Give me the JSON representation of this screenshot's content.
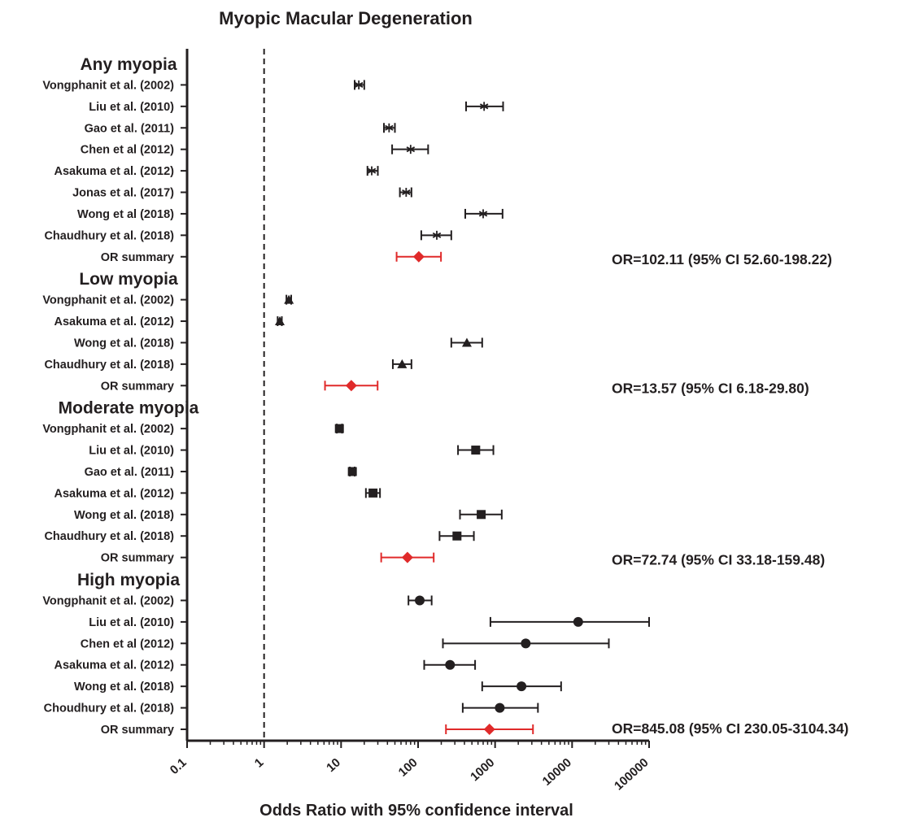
{
  "chart_data": {
    "type": "forest",
    "title": "Myopic Macular Degeneration",
    "xlabel": "Odds Ratio with 95% confidence interval",
    "x_scale": "log",
    "xlim": [
      0.1,
      100000
    ],
    "x_ticks": [
      "0.1",
      "1",
      "10",
      "100",
      "1000",
      "10000",
      "100000"
    ],
    "reference_line": 1,
    "colors": {
      "study": "#231f20",
      "summary": "#e02a2a"
    },
    "groups": [
      {
        "name": "Any myopia",
        "marker": "asterisk",
        "studies": [
          {
            "label": "Vongphanit et al. (2002)",
            "or": 17,
            "lo": 15,
            "hi": 20
          },
          {
            "label": "Liu et al. (2010)",
            "or": 720,
            "lo": 420,
            "hi": 1270
          },
          {
            "label": "Gao et al. (2011)",
            "or": 42,
            "lo": 36,
            "hi": 50
          },
          {
            "label": "Chen et al (2012)",
            "or": 80,
            "lo": 46,
            "hi": 135
          },
          {
            "label": "Asakuma et al. (2012)",
            "or": 25,
            "lo": 22,
            "hi": 30
          },
          {
            "label": "Jonas et al. (2017)",
            "or": 70,
            "lo": 58,
            "hi": 82
          },
          {
            "label": "Wong et al (2018)",
            "or": 700,
            "lo": 410,
            "hi": 1250
          },
          {
            "label": "Chaudhury et al. (2018)",
            "or": 175,
            "lo": 110,
            "hi": 270
          }
        ],
        "summary": {
          "label": "OR summary",
          "or": 102.11,
          "lo": 52.6,
          "hi": 198.22,
          "text": "OR=102.11 (95% CI 52.60-198.22)"
        }
      },
      {
        "name": "Low myopia",
        "marker": "triangle",
        "studies": [
          {
            "label": "Vongphanit et al. (2002)",
            "or": 2.1,
            "lo": 1.95,
            "hi": 2.25
          },
          {
            "label": "Asakuma et al. (2012)",
            "or": 1.6,
            "lo": 1.5,
            "hi": 1.7
          },
          {
            "label": "Wong et al. (2018)",
            "or": 430,
            "lo": 270,
            "hi": 680
          },
          {
            "label": "Chaudhury et al. (2018)",
            "or": 62,
            "lo": 47,
            "hi": 82
          }
        ],
        "summary": {
          "label": "OR summary",
          "or": 13.57,
          "lo": 6.18,
          "hi": 29.8,
          "text": "OR=13.57 (95% CI 6.18-29.80)"
        }
      },
      {
        "name": "Moderate myopia",
        "marker": "square",
        "studies": [
          {
            "label": "Vongphanit et al. (2002)",
            "or": 9.5,
            "lo": 8.8,
            "hi": 10.3
          },
          {
            "label": "Liu et al. (2010)",
            "or": 560,
            "lo": 330,
            "hi": 950
          },
          {
            "label": "Gao et al. (2011)",
            "or": 14,
            "lo": 13,
            "hi": 15
          },
          {
            "label": "Asakuma et al. (2012)",
            "or": 26,
            "lo": 21,
            "hi": 32
          },
          {
            "label": "Wong et al. (2018)",
            "or": 660,
            "lo": 350,
            "hi": 1220
          },
          {
            "label": "Chaudhury et al. (2018)",
            "or": 320,
            "lo": 190,
            "hi": 530
          }
        ],
        "summary": {
          "label": "OR summary",
          "or": 72.74,
          "lo": 33.18,
          "hi": 159.48,
          "text": "OR=72.74 (95% CI 33.18-159.48)"
        }
      },
      {
        "name": "High myopia",
        "marker": "circle",
        "studies": [
          {
            "label": "Vongphanit et al. (2002)",
            "or": 105,
            "lo": 75,
            "hi": 150
          },
          {
            "label": "Liu et al. (2010)",
            "or": 12000,
            "lo": 870,
            "hi": 100000
          },
          {
            "label": "Chen et al (2012)",
            "or": 2500,
            "lo": 210,
            "hi": 30000
          },
          {
            "label": "Asakuma et al. (2012)",
            "or": 260,
            "lo": 120,
            "hi": 550
          },
          {
            "label": "Wong et al. (2018)",
            "or": 2200,
            "lo": 680,
            "hi": 7200
          },
          {
            "label": "Choudhury et al. (2018)",
            "or": 1150,
            "lo": 380,
            "hi": 3600
          }
        ],
        "summary": {
          "label": "OR summary",
          "or": 845.08,
          "lo": 230.05,
          "hi": 3104.34,
          "text": "OR=845.08 (95% CI 230.05-3104.34)"
        }
      }
    ]
  }
}
